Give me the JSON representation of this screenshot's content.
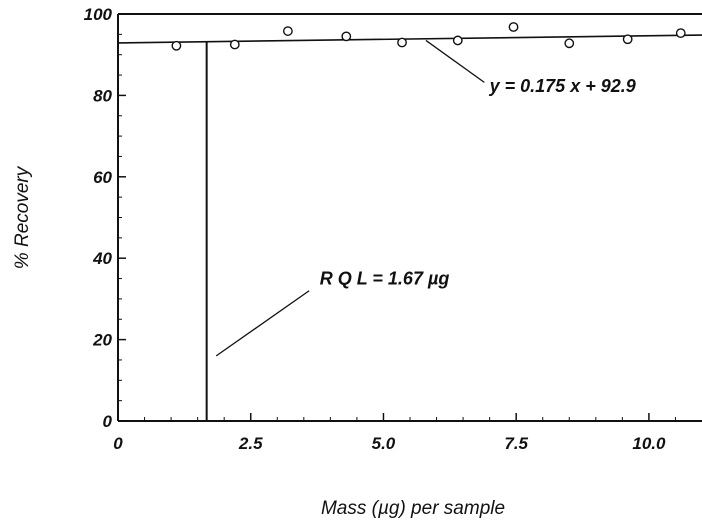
{
  "chart_data": {
    "type": "scatter",
    "xlabel": "Mass (µg) per sample",
    "ylabel": "% Recovery",
    "xlim": [
      0,
      11.0
    ],
    "ylim": [
      0,
      100
    ],
    "x_ticks": [
      0,
      2.5,
      5.0,
      7.5,
      10.0
    ],
    "x_tick_labels": [
      "0",
      "2.5",
      "5.0",
      "7.5",
      "10.0"
    ],
    "y_ticks": [
      0,
      20,
      40,
      60,
      80,
      100
    ],
    "y_tick_labels": [
      "0",
      "20",
      "40",
      "60",
      "80",
      "100"
    ],
    "grid": false,
    "legend": "none",
    "series": [
      {
        "points": [
          {
            "x": 1.1,
            "y": 92.2
          },
          {
            "x": 2.2,
            "y": 92.5
          },
          {
            "x": 3.2,
            "y": 95.8
          },
          {
            "x": 4.3,
            "y": 94.5
          },
          {
            "x": 5.35,
            "y": 93.0
          },
          {
            "x": 6.4,
            "y": 93.5
          },
          {
            "x": 7.45,
            "y": 96.8
          },
          {
            "x": 8.5,
            "y": 92.8
          },
          {
            "x": 9.6,
            "y": 93.8
          },
          {
            "x": 10.6,
            "y": 95.3
          }
        ]
      }
    ],
    "fit_line": {
      "slope": 0.175,
      "intercept": 92.9,
      "label": "y = 0.175 x + 92.9"
    },
    "rql_line": {
      "x": 1.67,
      "label": "R Q L = 1.67 µg"
    },
    "annotations": [
      {
        "text": "y = 0.175 x + 92.9",
        "x": 7.0,
        "y": 80.8,
        "arrow_to": {
          "x": 5.8,
          "y": 93.5
        },
        "arrow_from": {
          "x": 6.9,
          "y": 83.2
        }
      },
      {
        "text": "R Q L = 1.67 µg",
        "x": 3.8,
        "y": 33.5,
        "arrow_to": {
          "x": 1.85,
          "y": 16.0
        },
        "arrow_from": {
          "x": 3.6,
          "y": 32.0
        }
      }
    ]
  }
}
